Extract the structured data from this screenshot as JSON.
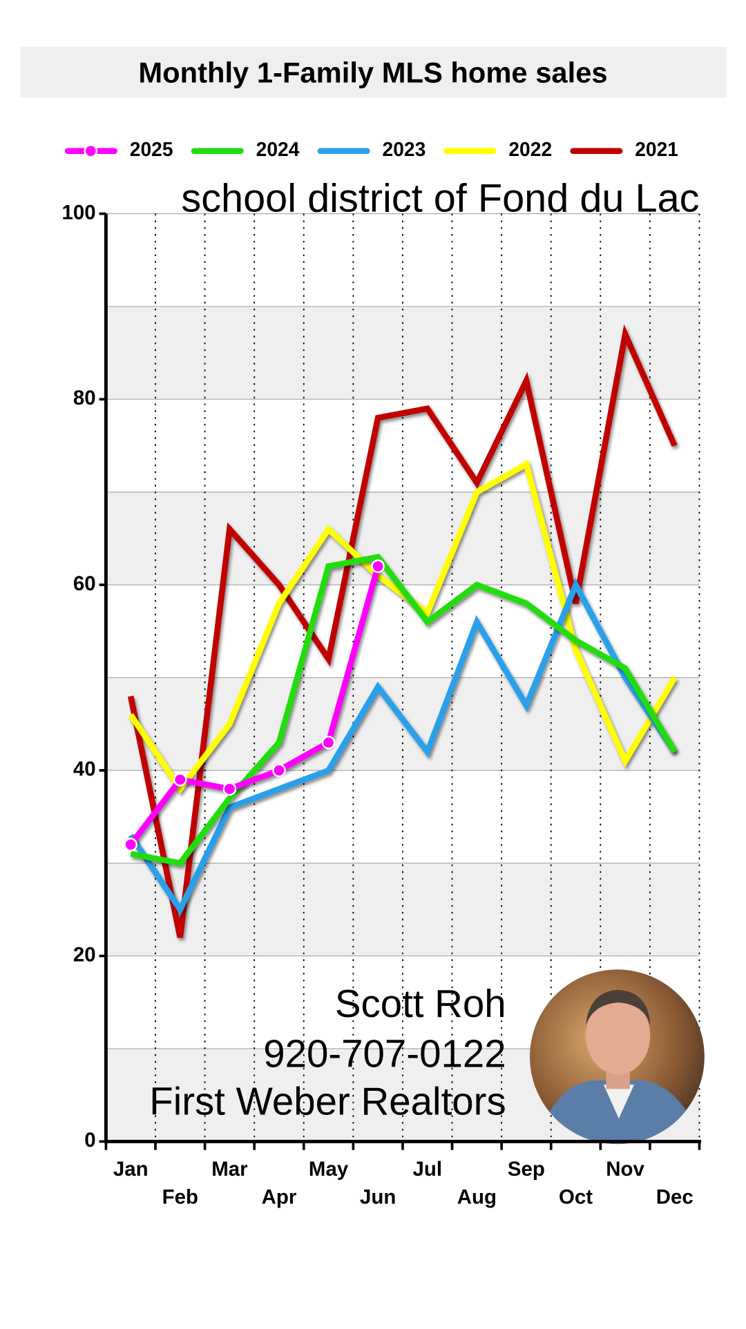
{
  "chart_data": {
    "type": "line",
    "title": "Monthly 1-Family MLS home sales",
    "subtitle": "school district of Fond du Lac",
    "categories": [
      "Jan",
      "Feb",
      "Mar",
      "Apr",
      "May",
      "Jun",
      "Jul",
      "Aug",
      "Sep",
      "Oct",
      "Nov",
      "Dec"
    ],
    "series": [
      {
        "name": "2025",
        "color": "#ff00ff",
        "markers": true,
        "values": [
          32,
          39,
          38,
          40,
          43,
          62,
          null,
          null,
          null,
          null,
          null,
          null
        ]
      },
      {
        "name": "2024",
        "color": "#22dd11",
        "values": [
          31,
          30,
          37,
          43,
          62,
          63,
          56,
          60,
          58,
          54,
          51,
          42
        ]
      },
      {
        "name": "2023",
        "color": "#2aa0ea",
        "values": [
          33,
          25,
          36,
          38,
          40,
          49,
          42,
          56,
          47,
          60,
          50,
          42
        ]
      },
      {
        "name": "2022",
        "color": "#ffff00",
        "values": [
          46,
          38,
          45,
          58,
          66,
          61,
          57,
          70,
          73,
          53,
          41,
          50
        ]
      },
      {
        "name": "2021",
        "color": "#c00000",
        "values": [
          48,
          22,
          66,
          60,
          52,
          78,
          79,
          71,
          82,
          58,
          87,
          75
        ]
      }
    ],
    "ylim": [
      0,
      100
    ],
    "yticks": [
      0,
      20,
      40,
      60,
      80,
      100
    ],
    "grid": true,
    "annotations": [
      "Scott Roh",
      "920-707-0122",
      "First Weber Realtors"
    ]
  }
}
